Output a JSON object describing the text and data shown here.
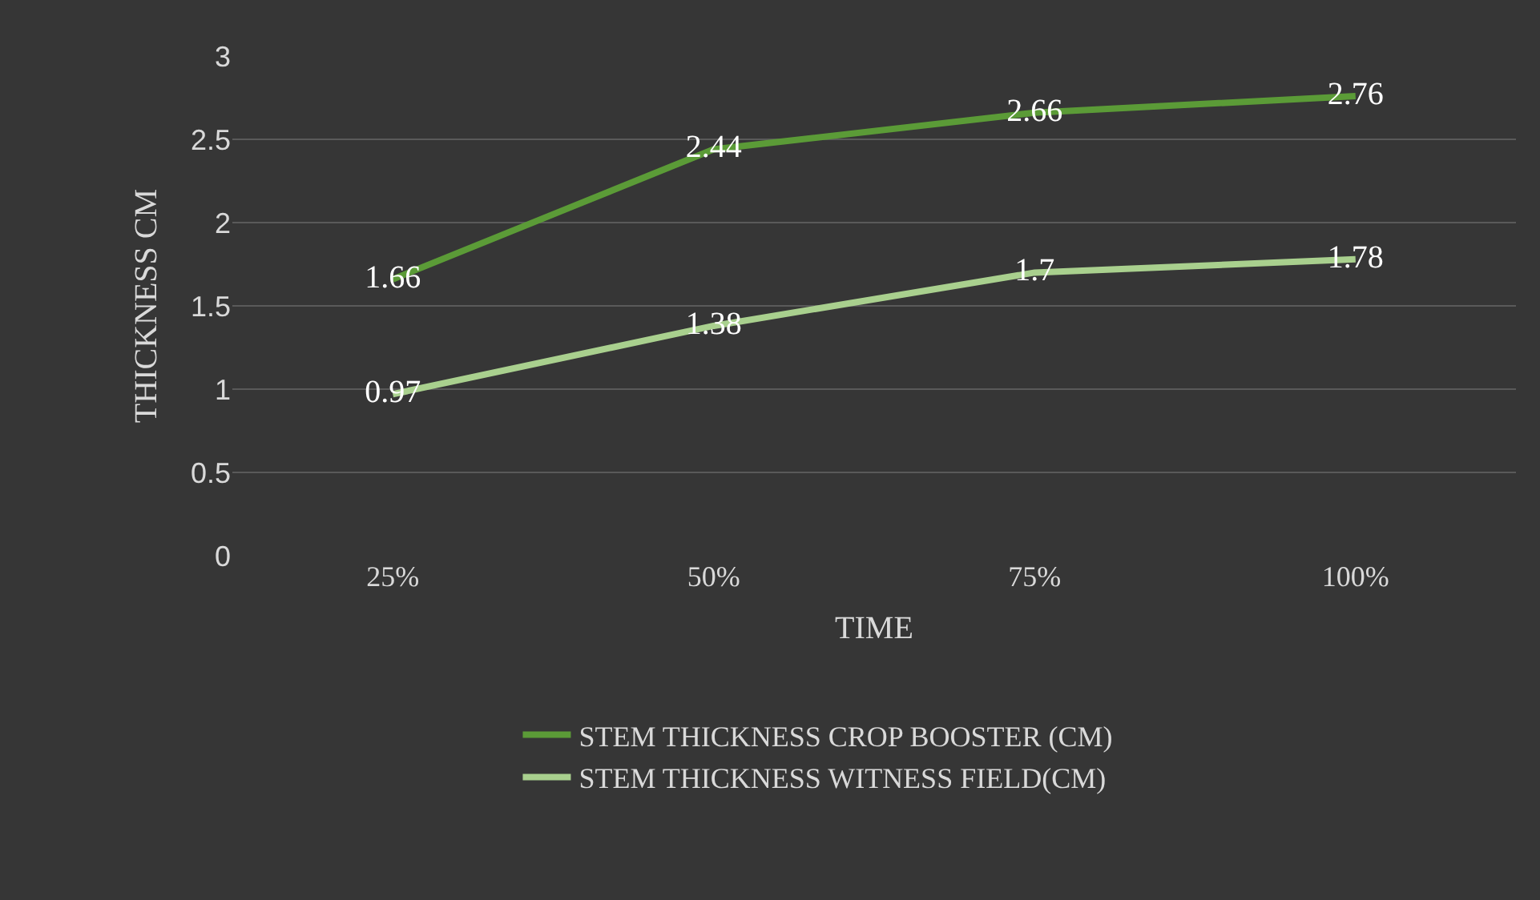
{
  "chart_data": {
    "type": "line",
    "xlabel": "TIME",
    "ylabel": "THICKNESS CM",
    "categories": [
      "25%",
      "50%",
      "75%",
      "100%"
    ],
    "series": [
      {
        "name": "STEM THICKNESS CROP BOOSTER (CM)",
        "color": "#5b9b37",
        "values": [
          1.66,
          2.44,
          2.66,
          2.76
        ]
      },
      {
        "name": "STEM THICKNESS WITNESS FIELD(CM)",
        "color": "#a9d08e",
        "values": [
          0.97,
          1.38,
          1.7,
          1.78
        ]
      }
    ],
    "ylim": [
      0,
      3
    ],
    "yticks": [
      0,
      0.5,
      1,
      1.5,
      2,
      2.5,
      3
    ],
    "grid": "y",
    "legend": "bottom",
    "data_labels": true,
    "marker": "none",
    "line_style": "solid"
  }
}
